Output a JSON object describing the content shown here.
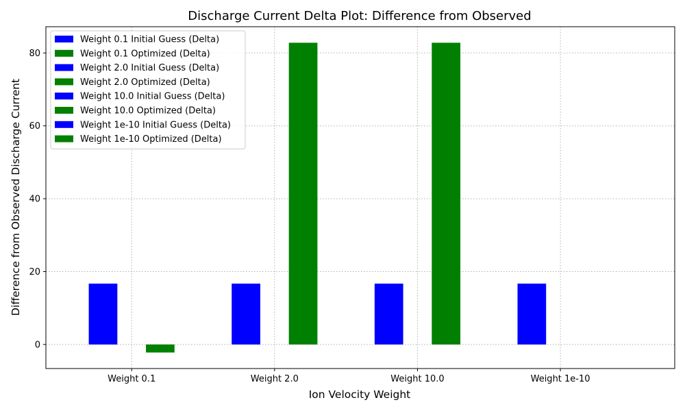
{
  "chart_data": {
    "type": "bar",
    "title": "Discharge Current Delta Plot: Difference from Observed",
    "xlabel": "Ion Velocity Weight",
    "ylabel": "Difference from Observed Discharge Current",
    "categories": [
      "Weight 0.1",
      "Weight 2.0",
      "Weight 10.0",
      "Weight 1e-10"
    ],
    "ylim": [
      -6.6,
      87.2
    ],
    "yticks": [
      0,
      20,
      40,
      60,
      80
    ],
    "grid": true,
    "legend_position": "upper-left",
    "bars": [
      {
        "name": "Weight 0.1 Initial Guess (Delta)",
        "category": 0,
        "offset": "left",
        "value": 16.7,
        "color": "#0000ff"
      },
      {
        "name": "Weight 0.1 Optimized (Delta)",
        "category": 0,
        "offset": "right",
        "value": -2.2,
        "color": "#008000"
      },
      {
        "name": "Weight 2.0 Initial Guess (Delta)",
        "category": 1,
        "offset": "left",
        "value": 16.7,
        "color": "#0000ff"
      },
      {
        "name": "Weight 2.0 Optimized (Delta)",
        "category": 1,
        "offset": "right",
        "value": 82.8,
        "color": "#008000"
      },
      {
        "name": "Weight 10.0 Initial Guess (Delta)",
        "category": 2,
        "offset": "left",
        "value": 16.7,
        "color": "#0000ff"
      },
      {
        "name": "Weight 10.0 Optimized (Delta)",
        "category": 2,
        "offset": "right",
        "value": 82.8,
        "color": "#008000"
      },
      {
        "name": "Weight 1e-10 Initial Guess (Delta)",
        "category": 3,
        "offset": "left",
        "value": 16.7,
        "color": "#0000ff"
      },
      {
        "name": "Weight 1e-10 Optimized (Delta)",
        "category": 3,
        "offset": "right",
        "value": 0,
        "color": "#008000"
      }
    ]
  }
}
